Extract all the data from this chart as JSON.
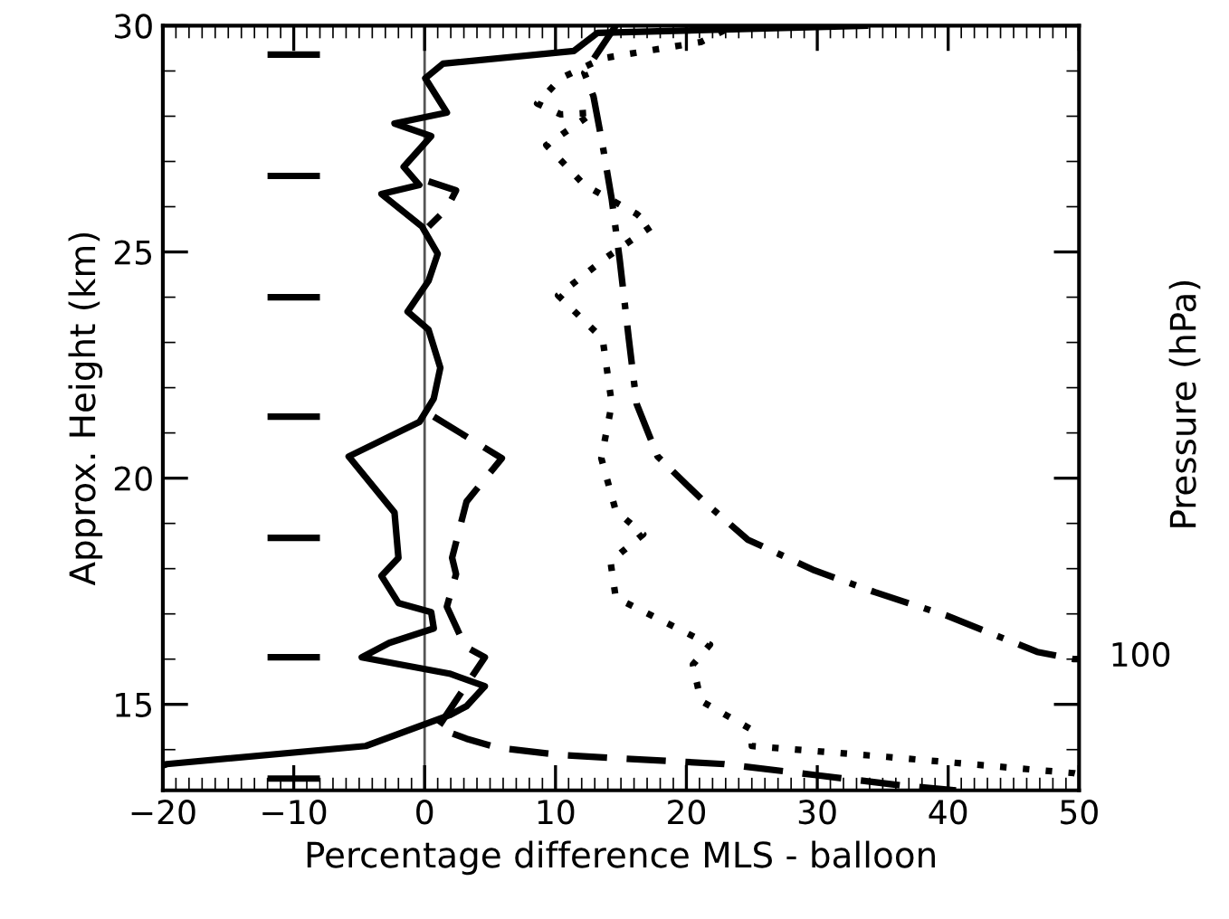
{
  "chart_data": {
    "type": "line",
    "xlabel": "Percentage difference MLS - balloon",
    "ylabel": "Approx. Height (km)",
    "y2label": "Pressure (hPa)",
    "xlim": [
      -20,
      50
    ],
    "xticks": [
      -20,
      -10,
      0,
      10,
      20,
      30,
      40,
      50
    ],
    "ylim": [
      13.1,
      30.0
    ],
    "yticks": [
      15,
      20,
      25,
      30
    ],
    "annotations": [
      {
        "text": "100",
        "x": 50,
        "y": 16.04
      }
    ],
    "grid": false,
    "legend": false,
    "marker": "none",
    "ref_lines": [
      {
        "axis": "x",
        "value": 0,
        "color": "#555555",
        "line_style": "solid"
      }
    ],
    "series": [
      {
        "color": "#000000",
        "line_style": "solid",
        "x": [
          33.9,
          13.2,
          11.4,
          1.4,
          0.05,
          1.7,
          -2.3,
          0.5,
          -1.6,
          -0.4,
          -3.3,
          -0.2,
          1.0,
          0.3,
          -1.3,
          0.3,
          1.2,
          0.7,
          -0.4,
          -5.8,
          -2.3,
          -2.0,
          -3.3,
          -2.0,
          0.5,
          0.7,
          -2.7,
          -4.8,
          1.9,
          4.6,
          3.2,
          1.9,
          -4.5,
          -19.7,
          -20
        ],
        "values": [
          30.0,
          29.84,
          29.44,
          29.16,
          28.84,
          28.08,
          27.84,
          27.56,
          26.88,
          26.48,
          26.28,
          25.56,
          24.96,
          24.36,
          23.68,
          23.28,
          22.44,
          21.76,
          21.24,
          20.48,
          19.24,
          18.24,
          17.84,
          17.24,
          17.04,
          16.68,
          16.36,
          16.04,
          15.68,
          15.4,
          14.96,
          14.76,
          14.08,
          13.68,
          13.65
        ]
      },
      {
        "color": "#000000",
        "line_style": "dashed",
        "x": [
          0.3,
          2.4,
          1.7,
          0.3,
          null,
          0.7,
          5.9,
          3.2,
          2.1,
          2.4,
          1.7,
          3.1,
          4.6,
          1.0,
          3.2,
          5.6,
          10.4,
          22.9,
          29.8,
          36.7,
          40.6
        ],
        "values": [
          26.56,
          26.36,
          25.96,
          25.56,
          null,
          21.36,
          20.44,
          19.48,
          18.24,
          17.88,
          17.16,
          16.28,
          16.04,
          14.48,
          14.24,
          14.04,
          13.88,
          13.68,
          13.44,
          13.2,
          13.1
        ]
      },
      {
        "color": "#000000",
        "line_style": "dotted",
        "x": [
          22.9,
          21.1,
          13.6,
          10.4,
          8.6,
          10.4,
          12.9,
          9.3,
          12.2,
          16.2,
          17.3,
          13.9,
          10.2,
          13.6,
          14.3,
          13.5,
          14.6,
          16.7,
          14.2,
          14.6,
          21.8,
          20.5,
          21.1,
          25.0,
          25.0,
          35.3,
          49.6,
          50
        ],
        "values": [
          29.9,
          29.64,
          29.28,
          28.84,
          28.28,
          28.04,
          28.08,
          27.36,
          26.48,
          25.84,
          25.56,
          24.88,
          24.04,
          23.08,
          21.64,
          20.44,
          19.28,
          18.76,
          18.16,
          17.36,
          16.32,
          15.88,
          15.08,
          14.44,
          14.08,
          13.84,
          13.48,
          13.45
        ]
      },
      {
        "color": "#000000",
        "line_style": "dashdot",
        "x": [
          14.6,
          12.2,
          12.9,
          13.6,
          14.3,
          14.9,
          15.6,
          16.2,
          17.8,
          21.5,
          24.7,
          29.8,
          34.4,
          39.9,
          46.8,
          49.6,
          50
        ],
        "values": [
          30.0,
          28.96,
          28.44,
          27.36,
          26.16,
          24.84,
          23.08,
          21.64,
          20.48,
          19.44,
          18.64,
          17.96,
          17.48,
          16.96,
          16.16,
          16.0,
          16.0
        ]
      },
      {
        "color": "#000000",
        "line_style": "solid",
        "x": [
          -12,
          -8
        ],
        "values": [
          29.36,
          29.36
        ]
      },
      {
        "color": "#000000",
        "line_style": "solid",
        "x": [
          -12,
          -8
        ],
        "values": [
          26.68,
          26.68
        ]
      },
      {
        "color": "#000000",
        "line_style": "solid",
        "x": [
          -12,
          -8
        ],
        "values": [
          24.0,
          24.0
        ]
      },
      {
        "color": "#000000",
        "line_style": "solid",
        "x": [
          -12,
          -8
        ],
        "values": [
          21.36,
          21.36
        ]
      },
      {
        "color": "#000000",
        "line_style": "solid",
        "x": [
          -12,
          -8
        ],
        "values": [
          18.68,
          18.68
        ]
      },
      {
        "color": "#000000",
        "line_style": "solid",
        "x": [
          -12,
          -8
        ],
        "values": [
          16.04,
          16.04
        ]
      },
      {
        "color": "#000000",
        "line_style": "solid",
        "x": [
          -12,
          -8
        ],
        "values": [
          13.36,
          13.36
        ]
      }
    ]
  }
}
